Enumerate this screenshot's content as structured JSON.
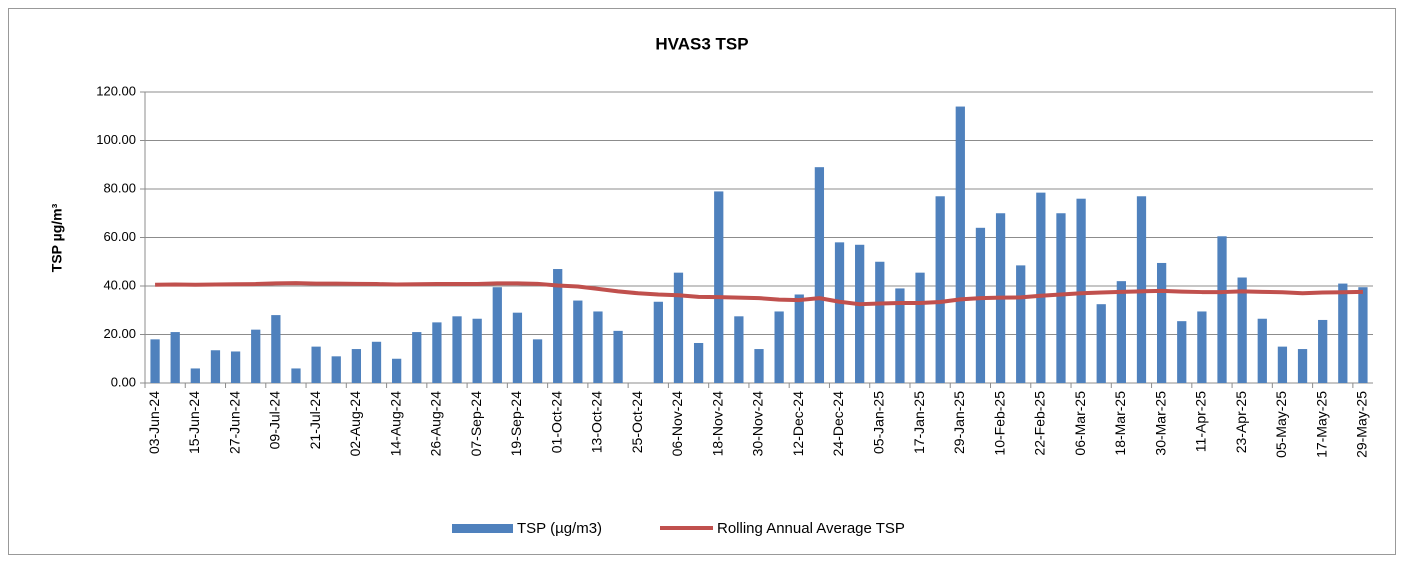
{
  "chart_data": {
    "type": "bar_line",
    "title": "HVAS3 TSP",
    "y_label": "TSP µg/m³",
    "categories": [
      "03-Jun-24",
      null,
      "15-Jun-24",
      null,
      "27-Jun-24",
      null,
      "09-Jul-24",
      null,
      "21-Jul-24",
      null,
      "02-Aug-24",
      null,
      "14-Aug-24",
      null,
      "26-Aug-24",
      null,
      "07-Sep-24",
      null,
      "19-Sep-24",
      null,
      "01-Oct-24",
      null,
      "13-Oct-24",
      null,
      "25-Oct-24",
      null,
      "06-Nov-24",
      null,
      "18-Nov-24",
      null,
      "30-Nov-24",
      null,
      "12-Dec-24",
      null,
      "24-Dec-24",
      null,
      "05-Jan-25",
      null,
      "17-Jan-25",
      null,
      "29-Jan-25",
      null,
      "10-Feb-25",
      null,
      "22-Feb-25",
      null,
      "06-Mar-25",
      null,
      "18-Mar-25",
      null,
      "30-Mar-25",
      null,
      "11-Apr-25",
      null,
      "23-Apr-25",
      null,
      "05-May-25",
      null,
      "17-May-25",
      null,
      "29-May-25"
    ],
    "series": [
      {
        "name": "TSP (µg/m3)",
        "type": "bar",
        "color": "#4f81bd",
        "values": [
          18,
          21,
          6,
          13.5,
          13,
          22,
          28,
          6,
          15,
          11,
          14,
          17,
          10,
          21,
          25,
          27.5,
          26.5,
          39.5,
          29,
          18,
          47,
          34,
          29.5,
          21.5,
          null,
          33.5,
          45.5,
          16.5,
          79,
          27.5,
          14,
          29.5,
          36.5,
          89,
          58,
          57,
          50,
          39,
          45.5,
          77,
          114,
          64,
          70,
          48.5,
          78.5,
          70,
          76,
          32.5,
          42,
          77,
          49.5,
          25.5,
          29.5,
          60.5,
          43.5,
          26.5,
          15,
          14,
          26,
          41,
          39.5
        ]
      },
      {
        "name": "Rolling Annual Average TSP",
        "type": "line",
        "color": "#c0504d",
        "values": [
          40.5,
          40.6,
          40.5,
          40.6,
          40.7,
          40.8,
          41.1,
          41.2,
          41,
          41,
          40.9,
          40.8,
          40.6,
          40.7,
          40.8,
          40.8,
          40.8,
          41.1,
          41.1,
          40.9,
          40.2,
          39.8,
          38.8,
          37.8,
          37,
          36.5,
          36.2,
          35.5,
          35.4,
          35.2,
          35,
          34.4,
          34.2,
          35,
          33.5,
          32.5,
          32.8,
          33,
          33,
          33.4,
          34.5,
          35,
          35.2,
          35.3,
          36,
          36.5,
          37,
          37.3,
          37.6,
          37.8,
          38,
          37.7,
          37.5,
          37.5,
          37.8,
          37.6,
          37.4,
          37,
          37.3,
          37.4,
          37.6
        ]
      }
    ],
    "ylim": [
      0,
      120
    ],
    "yticks": [
      {
        "value": 0,
        "label": "0.00"
      },
      {
        "value": 20,
        "label": "20.00"
      },
      {
        "value": 40,
        "label": "40.00"
      },
      {
        "value": 60,
        "label": "60.00"
      },
      {
        "value": 80,
        "label": "80.00"
      },
      {
        "value": 100,
        "label": "100.00"
      },
      {
        "value": 120,
        "label": "120.00"
      }
    ],
    "grid": true,
    "legend": "bottom"
  }
}
